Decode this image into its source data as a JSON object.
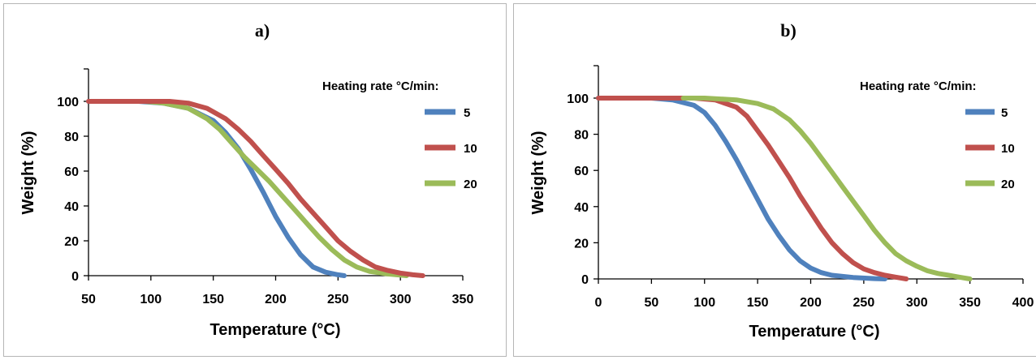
{
  "chart_data": [
    {
      "type": "line",
      "title": "a)",
      "xlabel": "Temperature (°C)",
      "ylabel": "Weight (%)",
      "xlim": [
        50,
        350
      ],
      "ylim": [
        0,
        100
      ],
      "x_ticks": [
        "50",
        "100",
        "150",
        "200",
        "250",
        "300",
        "350"
      ],
      "y_ticks": [
        "0",
        "20",
        "40",
        "60",
        "80",
        "100"
      ],
      "grid": false,
      "legend": {
        "title": "Heating rate °C/min:",
        "placement": "top-right"
      },
      "series": [
        {
          "name": "5",
          "color": "#4f81bd",
          "points": [
            [
              50,
              100
            ],
            [
              90,
              100
            ],
            [
              110,
              99
            ],
            [
              130,
              96
            ],
            [
              150,
              89
            ],
            [
              160,
              82
            ],
            [
              170,
              73
            ],
            [
              180,
              61
            ],
            [
              190,
              48
            ],
            [
              200,
              34
            ],
            [
              210,
              22
            ],
            [
              220,
              12
            ],
            [
              230,
              5
            ],
            [
              240,
              2
            ],
            [
              250,
              0.5
            ],
            [
              255,
              0
            ]
          ]
        },
        {
          "name": "20",
          "color": "#9bbb59",
          "points": [
            [
              95,
              100
            ],
            [
              110,
              99
            ],
            [
              130,
              96
            ],
            [
              145,
              90
            ],
            [
              155,
              84
            ],
            [
              165,
              76
            ],
            [
              175,
              68
            ],
            [
              185,
              61
            ],
            [
              195,
              54
            ],
            [
              205,
              46
            ],
            [
              215,
              38
            ],
            [
              225,
              30
            ],
            [
              235,
              22
            ],
            [
              245,
              15
            ],
            [
              255,
              9
            ],
            [
              265,
              5
            ],
            [
              275,
              2.5
            ],
            [
              290,
              1
            ],
            [
              305,
              0
            ]
          ]
        },
        {
          "name": "10",
          "color": "#c0504d",
          "points": [
            [
              50,
              100
            ],
            [
              115,
              100
            ],
            [
              130,
              99
            ],
            [
              145,
              96
            ],
            [
              160,
              90
            ],
            [
              170,
              84
            ],
            [
              180,
              77
            ],
            [
              190,
              69
            ],
            [
              200,
              61
            ],
            [
              210,
              53
            ],
            [
              220,
              44
            ],
            [
              230,
              36
            ],
            [
              240,
              28
            ],
            [
              250,
              20
            ],
            [
              260,
              14
            ],
            [
              270,
              9
            ],
            [
              280,
              5
            ],
            [
              290,
              3
            ],
            [
              300,
              1.5
            ],
            [
              310,
              0.5
            ],
            [
              318,
              0
            ]
          ]
        }
      ]
    },
    {
      "type": "line",
      "title": "b)",
      "xlabel": "Temperature (°C)",
      "ylabel": "Weight (%)",
      "xlim": [
        0,
        400
      ],
      "ylim": [
        0,
        100
      ],
      "x_ticks": [
        "0",
        "50",
        "100",
        "150",
        "200",
        "250",
        "300",
        "350",
        "400"
      ],
      "y_ticks": [
        "0",
        "20",
        "40",
        "60",
        "80",
        "100"
      ],
      "grid": false,
      "legend": {
        "title": "Heating rate °C/min:",
        "placement": "top-right"
      },
      "series": [
        {
          "name": "5",
          "color": "#4f81bd",
          "points": [
            [
              0,
              100
            ],
            [
              50,
              100
            ],
            [
              70,
              99
            ],
            [
              90,
              96
            ],
            [
              100,
              92
            ],
            [
              110,
              85
            ],
            [
              120,
              76
            ],
            [
              130,
              66
            ],
            [
              140,
              55
            ],
            [
              150,
              44
            ],
            [
              160,
              33
            ],
            [
              170,
              24
            ],
            [
              180,
              16
            ],
            [
              190,
              10
            ],
            [
              200,
              6
            ],
            [
              210,
              3.5
            ],
            [
              220,
              2
            ],
            [
              240,
              0.8
            ],
            [
              260,
              0.2
            ],
            [
              270,
              0
            ]
          ]
        },
        {
          "name": "10",
          "color": "#c0504d",
          "points": [
            [
              0,
              100
            ],
            [
              90,
              100
            ],
            [
              110,
              99
            ],
            [
              130,
              95
            ],
            [
              140,
              90
            ],
            [
              150,
              82
            ],
            [
              160,
              74
            ],
            [
              170,
              65
            ],
            [
              180,
              56
            ],
            [
              190,
              46
            ],
            [
              200,
              37
            ],
            [
              210,
              28
            ],
            [
              220,
              20
            ],
            [
              230,
              14
            ],
            [
              240,
              9
            ],
            [
              250,
              5.5
            ],
            [
              260,
              3.5
            ],
            [
              270,
              2
            ],
            [
              280,
              1
            ],
            [
              290,
              0
            ]
          ]
        },
        {
          "name": "20",
          "color": "#9bbb59",
          "points": [
            [
              80,
              100
            ],
            [
              100,
              100
            ],
            [
              130,
              99
            ],
            [
              150,
              97
            ],
            [
              165,
              94
            ],
            [
              180,
              88
            ],
            [
              190,
              82
            ],
            [
              200,
              75
            ],
            [
              210,
              67
            ],
            [
              220,
              59
            ],
            [
              230,
              51
            ],
            [
              240,
              43
            ],
            [
              250,
              35
            ],
            [
              260,
              27
            ],
            [
              270,
              20
            ],
            [
              280,
              14
            ],
            [
              290,
              10
            ],
            [
              300,
              7
            ],
            [
              310,
              4.5
            ],
            [
              320,
              3
            ],
            [
              330,
              2
            ],
            [
              340,
              1
            ],
            [
              350,
              0
            ]
          ]
        }
      ]
    }
  ]
}
